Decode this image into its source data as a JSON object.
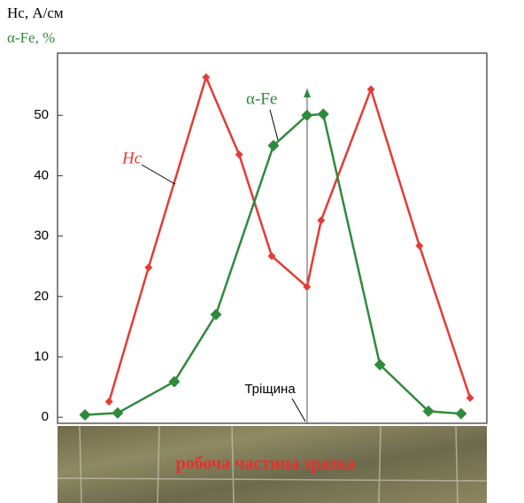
{
  "chart_data": {
    "type": "line",
    "y_label": "Hc, А/см",
    "y_label_2": "α-Fe, %",
    "crack_label": "Тріщина",
    "photo_caption": "робоча частина зразка",
    "xlim": [
      0,
      100
    ],
    "ylim": [
      -1,
      60.3
    ],
    "yticks": [
      0,
      10,
      20,
      30,
      40,
      50
    ],
    "series": [
      {
        "name": "Hc",
        "color": "#e53b35",
        "x": [
          12.0,
          21.2,
          34.6,
          42.3,
          49.9,
          58.1,
          61.4,
          73.0,
          84.3,
          96.1
        ],
        "values": [
          2.6,
          24.8,
          56.3,
          43.5,
          26.7,
          21.6,
          32.6,
          54.3,
          28.4,
          3.2
        ]
      },
      {
        "name": "α-Fe",
        "color": "#2f8a3c",
        "x": [
          6.4,
          14.0,
          27.2,
          36.9,
          50.3,
          58.1,
          61.9,
          75.1,
          86.4,
          94.0
        ],
        "values": [
          0.4,
          0.7,
          5.9,
          17,
          45,
          50,
          50.2,
          8.7,
          1.0,
          0.6
        ]
      }
    ]
  }
}
